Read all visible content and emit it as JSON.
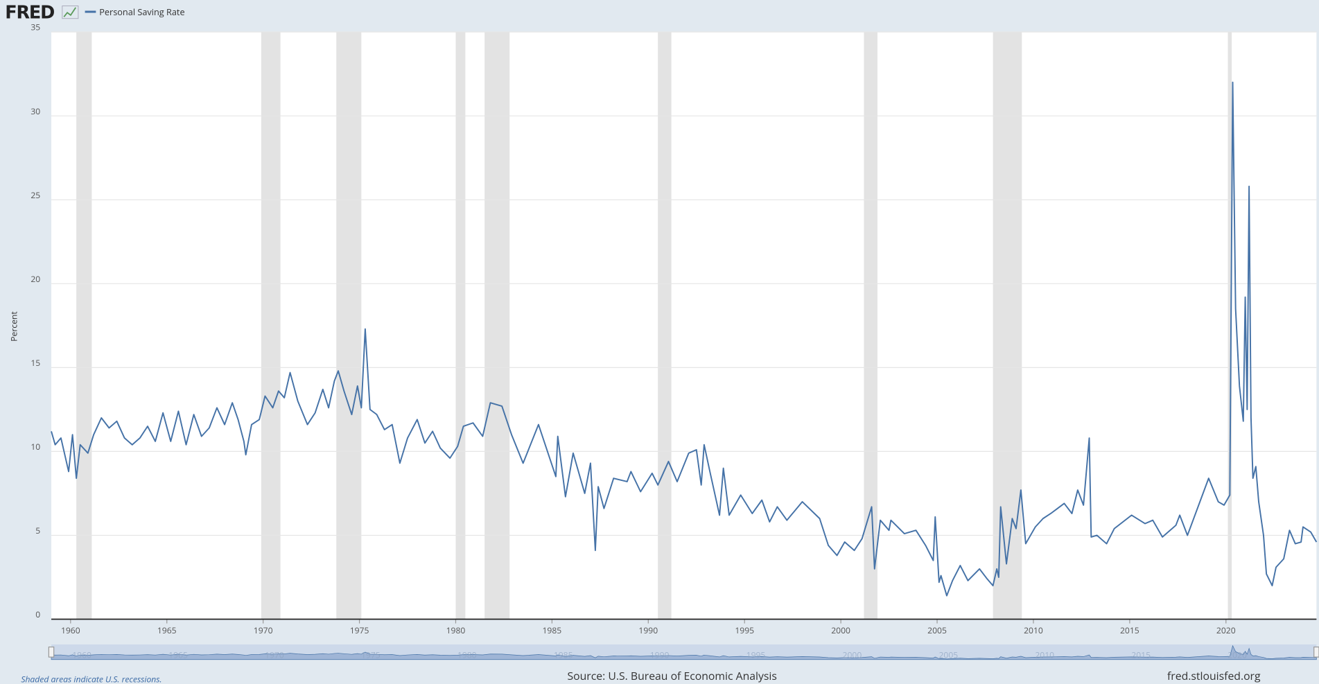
{
  "header": {
    "logo": "FRED",
    "legend": "Personal Saving Rate"
  },
  "footer": {
    "note": "Shaded areas indicate U.S. recessions.",
    "source": "Source: U.S. Bureau of Economic Analysis",
    "site": "fred.stlouisfed.org"
  },
  "chart_data": {
    "type": "line",
    "ylabel": "Percent",
    "grid": true,
    "xlim": [
      1959,
      2024.7
    ],
    "xticks": [
      1960,
      1965,
      1970,
      1975,
      1980,
      1985,
      1990,
      1995,
      2000,
      2005,
      2010,
      2015,
      2020
    ],
    "ylim": [
      0,
      35
    ],
    "yticks": [
      0,
      5,
      10,
      15,
      20,
      25,
      30,
      35
    ],
    "recessions": [
      [
        1960.3,
        1961.1
      ],
      [
        1969.9,
        1970.9
      ],
      [
        1973.8,
        1975.1
      ],
      [
        1980.0,
        1980.5
      ],
      [
        1981.5,
        1982.8
      ],
      [
        1990.5,
        1991.2
      ],
      [
        2001.2,
        2001.9
      ],
      [
        2007.9,
        2009.4
      ],
      [
        2020.1,
        2020.3
      ]
    ],
    "series": [
      {
        "name": "Personal Saving Rate",
        "color": "#4572a7",
        "x": [
          1959.0,
          1959.2,
          1959.5,
          1959.9,
          1960.1,
          1960.3,
          1960.5,
          1960.9,
          1961.2,
          1961.6,
          1962.0,
          1962.4,
          1962.8,
          1963.2,
          1963.6,
          1964.0,
          1964.4,
          1964.8,
          1965.2,
          1965.6,
          1966.0,
          1966.4,
          1966.8,
          1967.2,
          1967.6,
          1968.0,
          1968.4,
          1968.7,
          1969.0,
          1969.1,
          1969.4,
          1969.8,
          1970.1,
          1970.5,
          1970.8,
          1971.1,
          1971.4,
          1971.8,
          1972.3,
          1972.7,
          1973.1,
          1973.4,
          1973.7,
          1973.9,
          1974.2,
          1974.6,
          1974.9,
          1975.1,
          1975.3,
          1975.55,
          1975.9,
          1976.3,
          1976.7,
          1977.1,
          1977.5,
          1978.0,
          1978.4,
          1978.8,
          1979.2,
          1979.7,
          1980.1,
          1980.4,
          1980.9,
          1981.4,
          1981.8,
          1982.4,
          1982.9,
          1983.5,
          1984.3,
          1985.2,
          1985.3,
          1985.7,
          1986.1,
          1986.7,
          1987.0,
          1987.25,
          1987.4,
          1987.7,
          1988.2,
          1988.9,
          1989.1,
          1989.6,
          1990.2,
          1990.5,
          1991.05,
          1991.5,
          1992.1,
          1992.5,
          1992.75,
          1992.9,
          1993.2,
          1993.7,
          1993.9,
          1994.2,
          1994.8,
          1995.4,
          1995.9,
          1996.3,
          1996.7,
          1997.2,
          1998.0,
          1998.9,
          1999.35,
          1999.8,
          2000.2,
          2000.7,
          2001.1,
          2001.6,
          2001.75,
          2002.05,
          2002.5,
          2002.6,
          2003.3,
          2003.9,
          2004.4,
          2004.8,
          2004.9,
          2005.1,
          2005.2,
          2005.5,
          2005.8,
          2006.2,
          2006.6,
          2007.2,
          2007.6,
          2007.9,
          2008.1,
          2008.2,
          2008.3,
          2008.6,
          2008.9,
          2009.1,
          2009.35,
          2009.6,
          2010.1,
          2010.5,
          2010.9,
          2011.6,
          2012.0,
          2012.3,
          2012.6,
          2012.9,
          2013.0,
          2013.3,
          2013.8,
          2014.2,
          2015.1,
          2015.8,
          2016.2,
          2016.7,
          2017.4,
          2017.6,
          2018.0,
          2019.1,
          2019.6,
          2019.9,
          2020.2,
          2020.35,
          2020.5,
          2020.7,
          2020.9,
          2021.0,
          2021.1,
          2021.2,
          2021.3,
          2021.4,
          2021.55,
          2021.7,
          2021.95,
          2022.1,
          2022.4,
          2022.6,
          2023.0,
          2023.3,
          2023.6,
          2023.9,
          2024.0,
          2024.4,
          2024.7
        ],
        "values": [
          11.2,
          10.4,
          10.8,
          8.8,
          11.0,
          8.4,
          10.4,
          9.9,
          11.0,
          12.0,
          11.4,
          11.8,
          10.8,
          10.4,
          10.8,
          11.5,
          10.6,
          12.3,
          10.6,
          12.4,
          10.4,
          12.2,
          10.9,
          11.4,
          12.6,
          11.6,
          12.9,
          11.9,
          10.6,
          9.8,
          11.6,
          11.9,
          13.3,
          12.6,
          13.6,
          13.2,
          14.7,
          13.0,
          11.6,
          12.3,
          13.7,
          12.6,
          14.2,
          14.8,
          13.6,
          12.2,
          13.9,
          12.6,
          17.3,
          12.5,
          12.2,
          11.3,
          11.6,
          9.3,
          10.8,
          11.9,
          10.5,
          11.2,
          10.2,
          9.6,
          10.3,
          11.5,
          11.7,
          10.9,
          12.9,
          12.7,
          11.0,
          9.3,
          11.6,
          8.5,
          10.9,
          7.3,
          9.9,
          7.5,
          9.3,
          4.1,
          7.9,
          6.6,
          8.4,
          8.2,
          8.8,
          7.6,
          8.7,
          8.0,
          9.4,
          8.2,
          9.9,
          10.1,
          8.0,
          10.4,
          8.8,
          6.2,
          9.0,
          6.2,
          7.4,
          6.3,
          7.1,
          5.8,
          6.7,
          5.9,
          7.0,
          6.0,
          4.4,
          3.8,
          4.6,
          4.1,
          4.8,
          6.7,
          3.0,
          5.9,
          5.3,
          5.9,
          5.1,
          5.3,
          4.4,
          3.5,
          6.1,
          2.2,
          2.6,
          1.4,
          2.3,
          3.2,
          2.3,
          3.0,
          2.4,
          2.0,
          3.0,
          2.5,
          6.7,
          3.3,
          6.0,
          5.4,
          7.7,
          4.5,
          5.5,
          6.0,
          6.3,
          6.9,
          6.3,
          7.7,
          6.8,
          10.8,
          4.9,
          5.0,
          4.5,
          5.4,
          6.2,
          5.7,
          5.9,
          4.9,
          5.6,
          6.2,
          5.0,
          8.4,
          7.0,
          6.8,
          7.4,
          32.0,
          18.5,
          13.9,
          11.8,
          19.2,
          12.5,
          25.8,
          12.0,
          8.4,
          9.1,
          7.0,
          5.0,
          2.7,
          2.0,
          3.1,
          3.6,
          5.3,
          4.5,
          4.6,
          5.5,
          5.2,
          4.6
        ]
      }
    ]
  }
}
